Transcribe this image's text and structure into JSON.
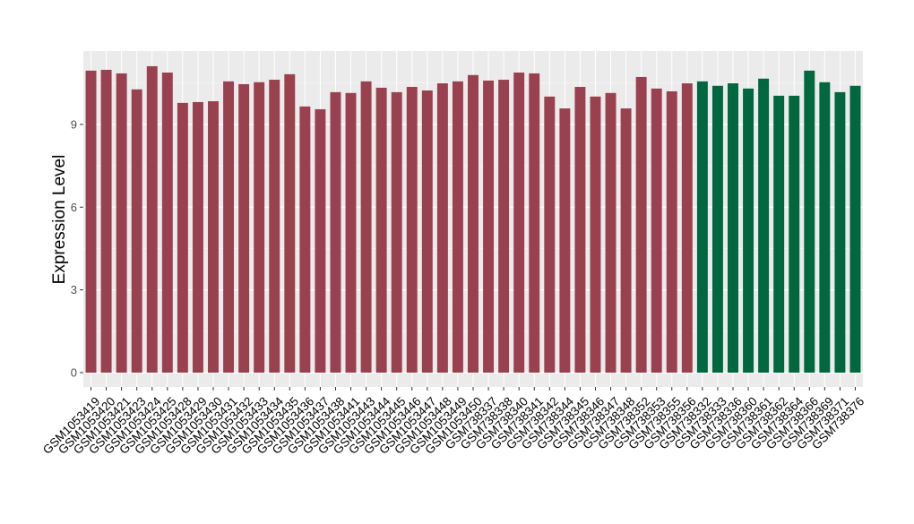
{
  "chart_data": {
    "type": "bar",
    "y_label": "Expression Level",
    "categories": [
      "GSM1053419",
      "GSM1053420",
      "GSM1053421",
      "GSM1053423",
      "GSM1053424",
      "GSM1053425",
      "GSM1053428",
      "GSM1053429",
      "GSM1053430",
      "GSM1053431",
      "GSM1053432",
      "GSM1053433",
      "GSM1053434",
      "GSM1053435",
      "GSM1053436",
      "GSM1053437",
      "GSM1053438",
      "GSM1053441",
      "GSM1053443",
      "GSM1053444",
      "GSM1053445",
      "GSM1053446",
      "GSM1053447",
      "GSM1053448",
      "GSM1053449",
      "GSM1053450",
      "GSM738337",
      "GSM738338",
      "GSM738340",
      "GSM738341",
      "GSM738342",
      "GSM738344",
      "GSM738345",
      "GSM738346",
      "GSM738347",
      "GSM738348",
      "GSM738352",
      "GSM738353",
      "GSM738355",
      "GSM738356",
      "GSM738332",
      "GSM738333",
      "GSM738336",
      "GSM738360",
      "GSM738361",
      "GSM738362",
      "GSM738364",
      "GSM738366",
      "GSM738369",
      "GSM738371",
      "GSM738376"
    ],
    "values": [
      10.95,
      10.98,
      10.85,
      10.27,
      11.11,
      10.88,
      9.78,
      9.81,
      9.84,
      10.56,
      10.46,
      10.53,
      10.62,
      10.82,
      9.65,
      9.55,
      10.17,
      10.14,
      10.56,
      10.33,
      10.17,
      10.36,
      10.23,
      10.49,
      10.56,
      10.79,
      10.59,
      10.62,
      10.88,
      10.85,
      10.01,
      9.58,
      10.36,
      10.01,
      10.14,
      9.58,
      10.72,
      10.3,
      10.2,
      10.49,
      10.56,
      10.4,
      10.49,
      10.3,
      10.66,
      10.04,
      10.04,
      10.95,
      10.53,
      10.17,
      10.4
    ],
    "colors": [
      "#99414f",
      "#99414f",
      "#99414f",
      "#99414f",
      "#99414f",
      "#99414f",
      "#99414f",
      "#99414f",
      "#99414f",
      "#99414f",
      "#99414f",
      "#99414f",
      "#99414f",
      "#99414f",
      "#99414f",
      "#99414f",
      "#99414f",
      "#99414f",
      "#99414f",
      "#99414f",
      "#99414f",
      "#99414f",
      "#99414f",
      "#99414f",
      "#99414f",
      "#99414f",
      "#99414f",
      "#99414f",
      "#99414f",
      "#99414f",
      "#99414f",
      "#99414f",
      "#99414f",
      "#99414f",
      "#99414f",
      "#99414f",
      "#99414f",
      "#99414f",
      "#99414f",
      "#99414f",
      "#00673f",
      "#00673f",
      "#00673f",
      "#00673f",
      "#00673f",
      "#00673f",
      "#00673f",
      "#00673f",
      "#00673f",
      "#00673f",
      "#00673f"
    ],
    "ylim": [
      -0.52,
      11.66
    ],
    "yticks": [
      0,
      3,
      6,
      9
    ],
    "grid": true
  }
}
